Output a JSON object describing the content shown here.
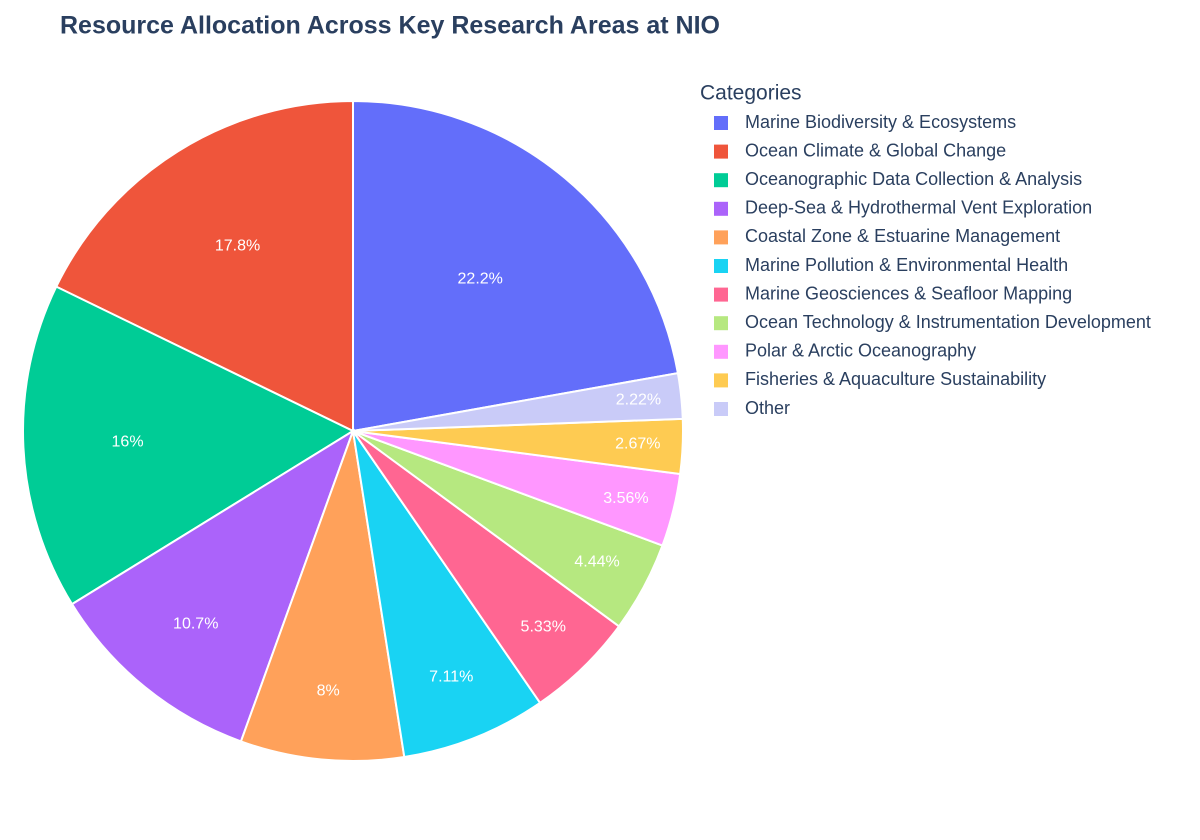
{
  "chart_data": {
    "type": "pie",
    "title": "Resource Allocation Across Key Research Areas at NIO",
    "legend_title": "Categories",
    "categories": [
      "Marine Biodiversity & Ecosystems",
      "Ocean Climate & Global Change",
      "Oceanographic Data Collection & Analysis",
      "Deep-Sea & Hydrothermal Vent Exploration",
      "Coastal Zone & Estuarine Management",
      "Marine Pollution & Environmental Health",
      "Marine Geosciences & Seafloor Mapping",
      "Ocean Technology & Instrumentation Development",
      "Polar & Arctic Oceanography",
      "Fisheries & Aquaculture Sustainability",
      "Other"
    ],
    "values": [
      22.2,
      17.8,
      16,
      10.7,
      8,
      7.11,
      5.33,
      4.44,
      3.56,
      2.67,
      2.22
    ],
    "value_labels": [
      "22.2%",
      "17.8%",
      "16%",
      "10.7%",
      "8%",
      "7.11%",
      "5.33%",
      "4.44%",
      "3.56%",
      "2.67%",
      "2.22%"
    ],
    "colors": [
      "#636efa",
      "#ef553b",
      "#00cc96",
      "#ab63fa",
      "#ffa15a",
      "#19d3f3",
      "#ff6692",
      "#b6e880",
      "#ff97ff",
      "#fecb52",
      "#c9cbf8"
    ],
    "legend_position": "right"
  }
}
